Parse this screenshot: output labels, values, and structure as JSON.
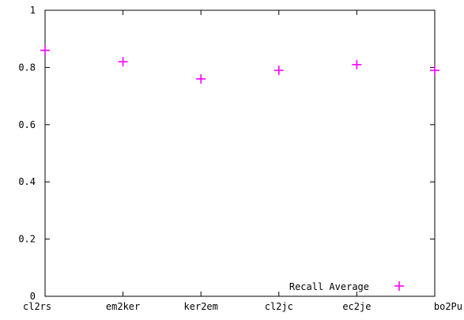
{
  "chart_data": {
    "type": "scatter",
    "categories": [
      "cl2rs",
      "em2ker",
      "ker2em",
      "cl2jc",
      "ec2je",
      "bo2Pu"
    ],
    "series": [
      {
        "name": "Recall Average",
        "values": [
          0.86,
          0.82,
          0.76,
          0.79,
          0.81,
          0.79
        ],
        "color": "#ff00ff",
        "marker": "plus"
      }
    ],
    "title": "",
    "xlabel": "",
    "ylabel": "",
    "ylim": [
      0,
      1
    ],
    "yticks": [
      "0",
      "0.2",
      "0.4",
      "0.6",
      "0.8",
      "1"
    ],
    "grid": false,
    "legend": {
      "placement": "bottom-right",
      "entries": [
        "Recall Average"
      ]
    }
  }
}
